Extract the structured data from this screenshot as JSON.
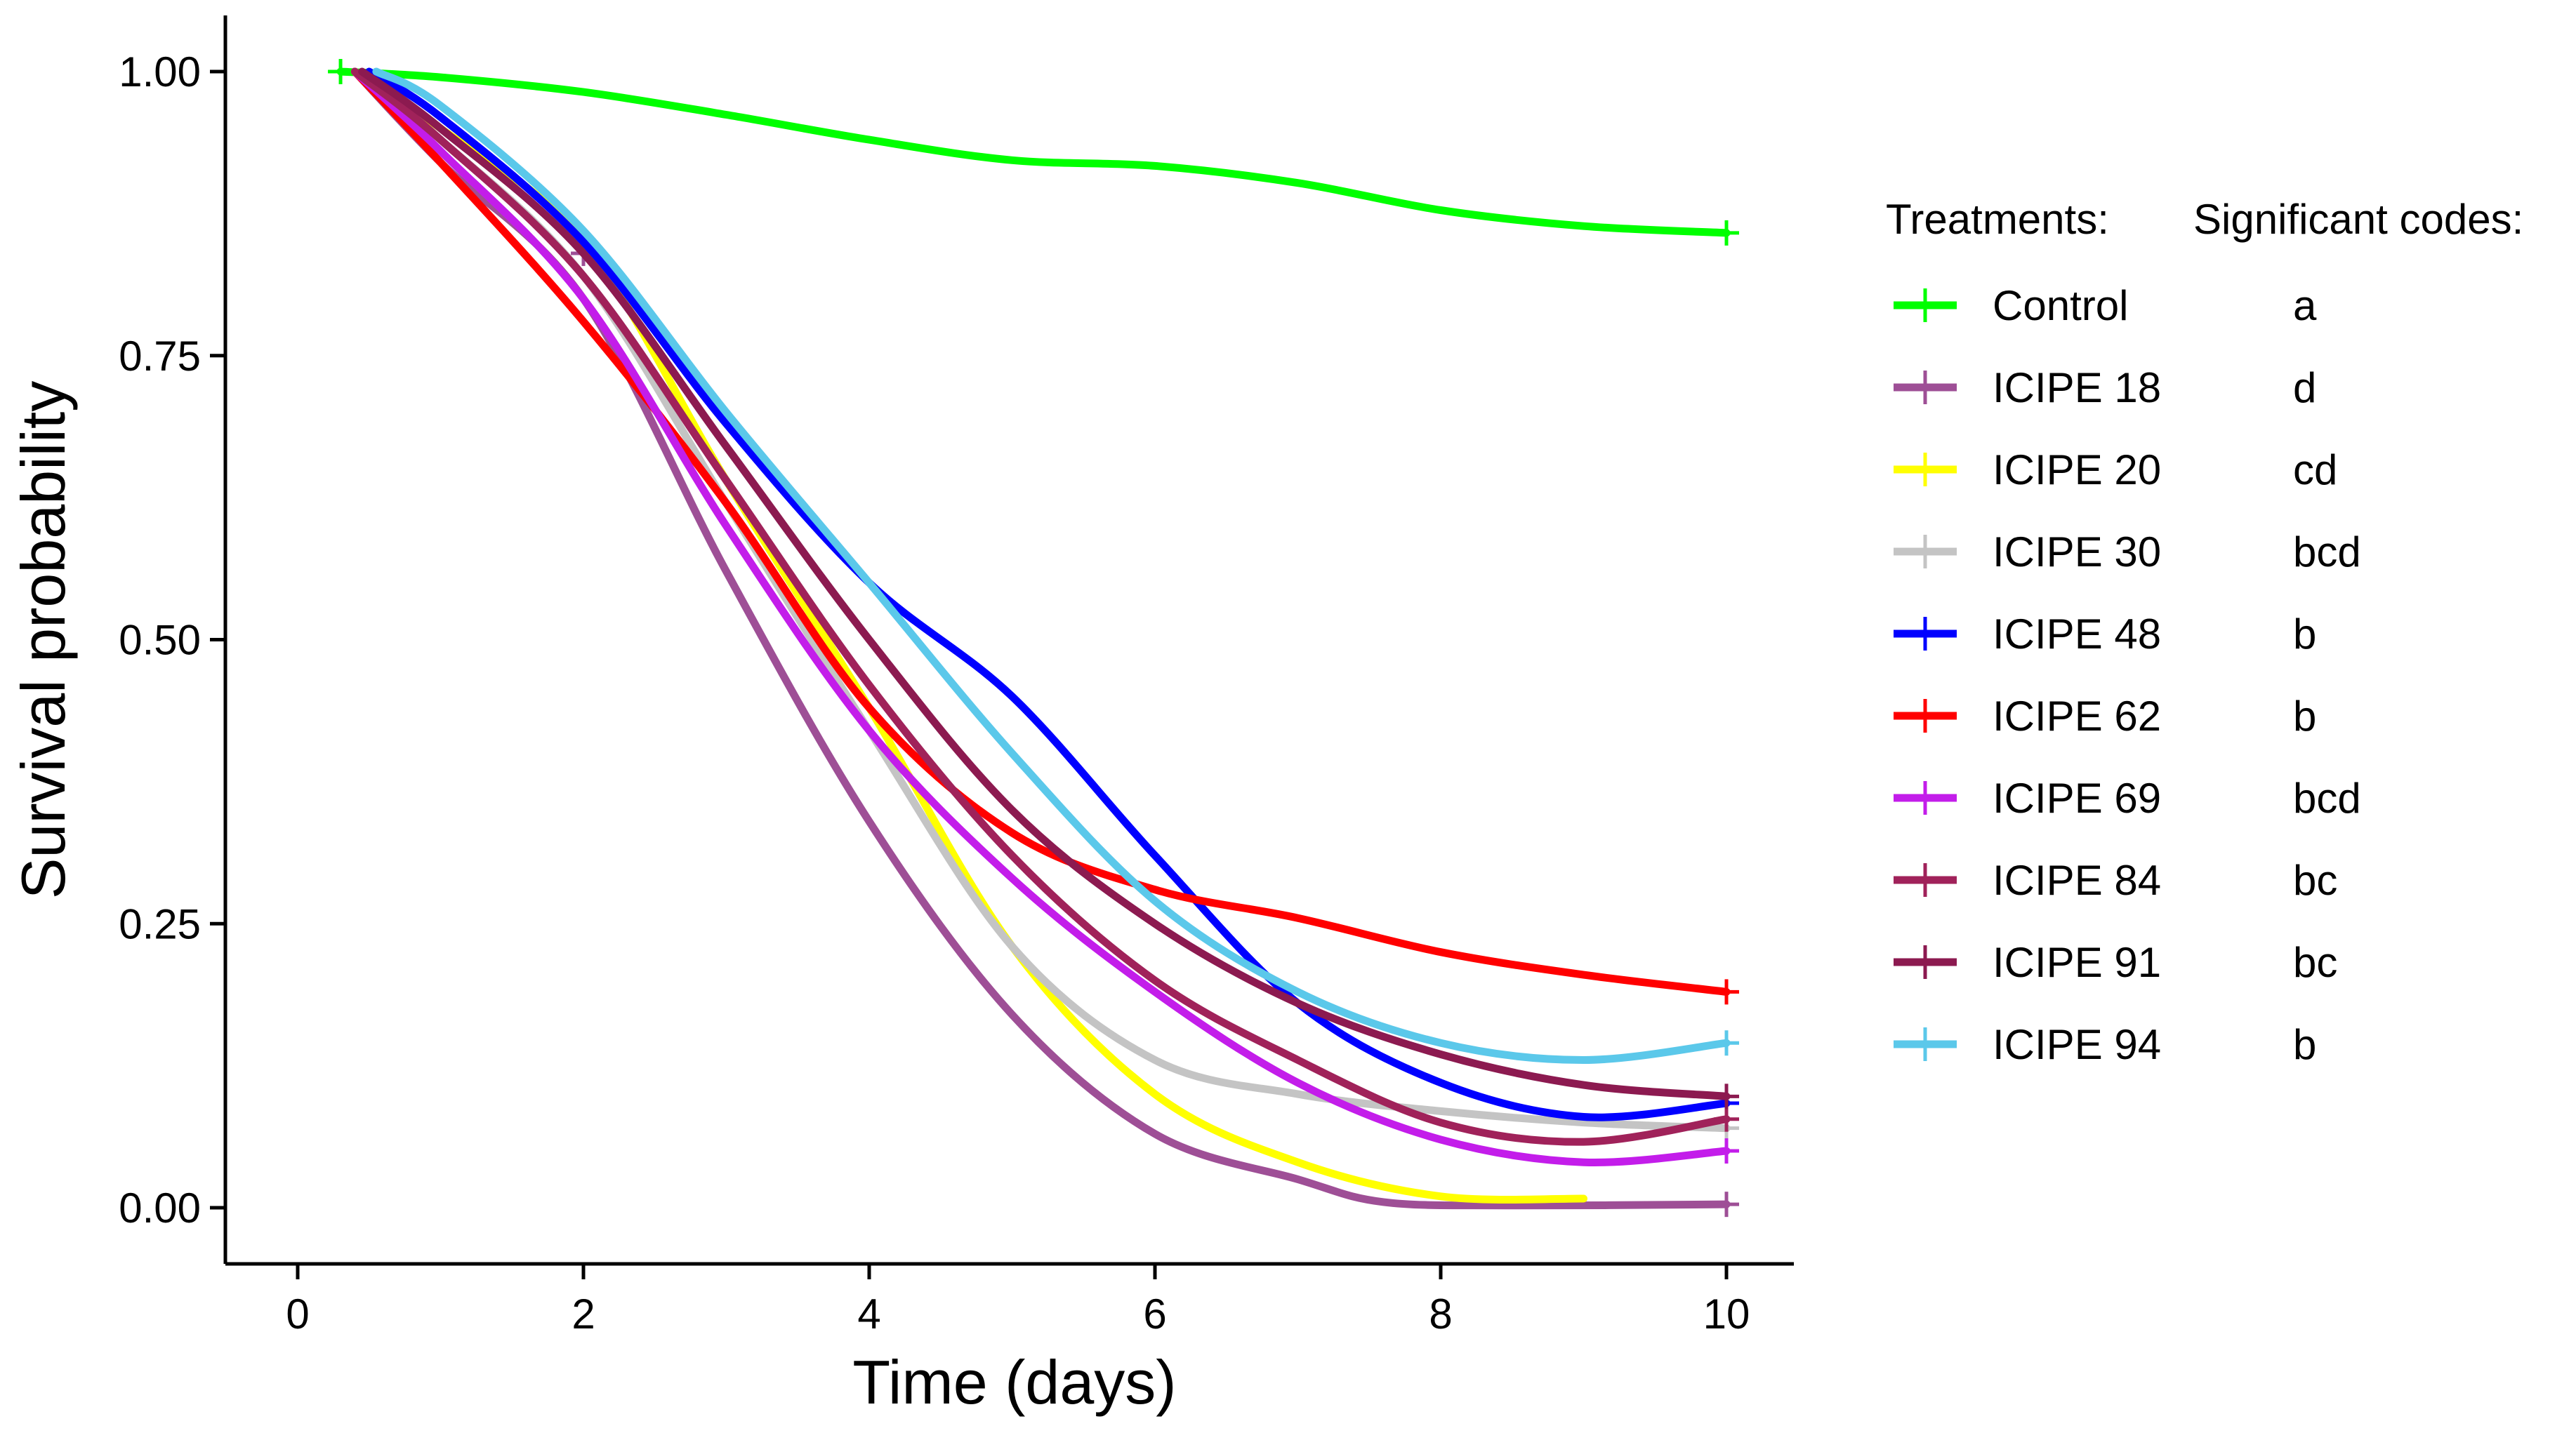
{
  "chart_data": {
    "type": "line",
    "xlabel": "Time (days)",
    "ylabel": "Survival probability",
    "xlim": [
      -0.5,
      10.5
    ],
    "ylim": [
      -0.05,
      1.05
    ],
    "x_ticks": [
      0,
      2,
      4,
      6,
      8,
      10
    ],
    "y_ticks": [
      0.0,
      0.25,
      0.5,
      0.75,
      1.0
    ],
    "x_tick_labels": [
      "0",
      "2",
      "4",
      "6",
      "8",
      "10"
    ],
    "y_tick_labels": [
      "0.00",
      "0.25",
      "0.50",
      "0.75",
      "1.00"
    ],
    "legend": {
      "position": "right",
      "title": "Treatments:",
      "codes_title": "Significant codes:"
    },
    "series": [
      {
        "name": " Control",
        "code": "a",
        "color": "#00ff00",
        "x": [
          0.3,
          1,
          2,
          3,
          4,
          5,
          6,
          7,
          8,
          9,
          10
        ],
        "y": [
          1.0,
          0.995,
          0.982,
          0.962,
          0.94,
          0.922,
          0.917,
          0.902,
          0.878,
          0.864,
          0.858
        ],
        "censor": [
          [
            0.3,
            1.0
          ],
          [
            10,
            0.858
          ]
        ]
      },
      {
        "name": "ICIPE 18",
        "code": "d",
        "color": "#9e4f96",
        "x": [
          0.4,
          1,
          2,
          3,
          4,
          5,
          6,
          7,
          7.6,
          8.5,
          10
        ],
        "y": [
          1.0,
          0.92,
          0.8,
          0.56,
          0.34,
          0.17,
          0.065,
          0.025,
          0.005,
          0.002,
          0.003
        ],
        "censor": [
          [
            2,
            0.84
          ],
          [
            10,
            0.003
          ]
        ]
      },
      {
        "name": "ICIPE 20",
        "code": "cd",
        "color": "#ffff00",
        "x": [
          0.4,
          1,
          2,
          3,
          4,
          5,
          6,
          7,
          8,
          9
        ],
        "y": [
          1.0,
          0.95,
          0.85,
          0.64,
          0.44,
          0.23,
          0.1,
          0.04,
          0.01,
          0.008
        ],
        "censor": []
      },
      {
        "name": "ICIPE 30",
        "code": "bcd",
        "color": "#c4c4c4",
        "x": [
          0.4,
          1,
          2,
          3,
          4,
          5,
          6,
          7,
          8,
          9,
          10
        ],
        "y": [
          1.0,
          0.94,
          0.82,
          0.62,
          0.42,
          0.23,
          0.13,
          0.1,
          0.085,
          0.075,
          0.07
        ],
        "censor": [
          [
            10,
            0.07
          ]
        ]
      },
      {
        "name": "ICIPE 48",
        "code": "b",
        "color": "#0000ff",
        "x": [
          0.5,
          1,
          2,
          3,
          4,
          5,
          6,
          7,
          8,
          9,
          10
        ],
        "y": [
          1.0,
          0.96,
          0.85,
          0.69,
          0.55,
          0.45,
          0.31,
          0.18,
          0.11,
          0.08,
          0.092
        ],
        "censor": [
          [
            10,
            0.092
          ]
        ]
      },
      {
        "name": "ICIPE 62",
        "code": "b",
        "color": "#ff0000",
        "x": [
          0.4,
          1,
          2,
          3,
          4,
          5,
          6,
          7,
          8,
          9,
          10
        ],
        "y": [
          1.0,
          0.92,
          0.78,
          0.62,
          0.44,
          0.33,
          0.28,
          0.255,
          0.225,
          0.205,
          0.19
        ],
        "censor": [
          [
            10,
            0.19
          ]
        ]
      },
      {
        "name": "ICIPE 69",
        "code": "bcd",
        "color": "#c31dea",
        "x": [
          0.4,
          1,
          2,
          3,
          4,
          5,
          6,
          7,
          8,
          9,
          10
        ],
        "y": [
          1.0,
          0.93,
          0.8,
          0.6,
          0.42,
          0.29,
          0.19,
          0.11,
          0.06,
          0.04,
          0.05
        ],
        "censor": [
          [
            10,
            0.05
          ]
        ]
      },
      {
        "name": "ICIPE 84",
        "code": "bc",
        "color": "#a0225a",
        "x": [
          0.4,
          1,
          2,
          3,
          4,
          5,
          6,
          7,
          8,
          9,
          10
        ],
        "y": [
          1.0,
          0.94,
          0.82,
          0.64,
          0.46,
          0.31,
          0.2,
          0.13,
          0.075,
          0.058,
          0.078
        ],
        "censor": [
          [
            10,
            0.078
          ]
        ]
      },
      {
        "name": "ICIPE 91",
        "code": "bc",
        "color": "#8c1a50",
        "x": [
          0.45,
          1,
          2,
          3,
          4,
          5,
          6,
          7,
          8,
          9,
          10
        ],
        "y": [
          1.0,
          0.95,
          0.84,
          0.67,
          0.5,
          0.35,
          0.25,
          0.18,
          0.135,
          0.108,
          0.098
        ],
        "censor": [
          [
            10,
            0.098
          ]
        ]
      },
      {
        "name": "ICIPE 94",
        "code": "b",
        "color": "#5bc8ea",
        "x": [
          0.55,
          1,
          2,
          3,
          4,
          5,
          6,
          7,
          8,
          9,
          10
        ],
        "y": [
          1.0,
          0.97,
          0.86,
          0.7,
          0.55,
          0.4,
          0.27,
          0.19,
          0.145,
          0.13,
          0.145
        ],
        "censor": [
          [
            10,
            0.145
          ]
        ]
      }
    ]
  }
}
